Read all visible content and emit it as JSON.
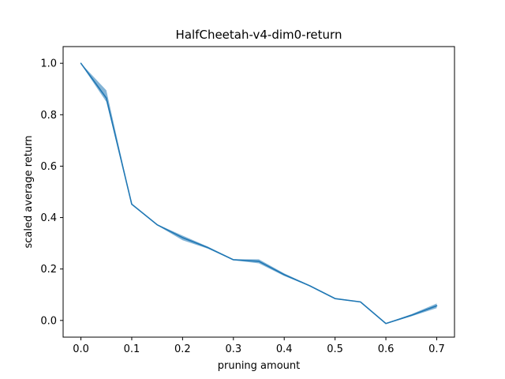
{
  "chart_data": {
    "type": "line",
    "title": "HalfCheetah-v4-dim0-return",
    "xlabel": "pruning amount",
    "ylabel": "scaled average return",
    "xlim": [
      -0.035,
      0.735
    ],
    "ylim": [
      -0.065,
      1.065
    ],
    "xticks": [
      0.0,
      0.1,
      0.2,
      0.3,
      0.4,
      0.5,
      0.6,
      0.7
    ],
    "xtick_labels": [
      "0.0",
      "0.1",
      "0.2",
      "0.3",
      "0.4",
      "0.5",
      "0.6",
      "0.7"
    ],
    "yticks": [
      0.0,
      0.2,
      0.4,
      0.6,
      0.8,
      1.0
    ],
    "ytick_labels": [
      "0.0",
      "0.2",
      "0.4",
      "0.6",
      "0.8",
      "1.0"
    ],
    "grid": false,
    "legend": "none",
    "line_color": "#1f77b4",
    "band_color": "#1f77b4",
    "series": [
      {
        "x": [
          0.0,
          0.05,
          0.1,
          0.15,
          0.2,
          0.25,
          0.3,
          0.35,
          0.4,
          0.45,
          0.5,
          0.55,
          0.6,
          0.65,
          0.7
        ],
        "y": [
          1.0,
          0.865,
          0.452,
          0.372,
          0.322,
          0.283,
          0.236,
          0.23,
          0.178,
          0.135,
          0.085,
          0.072,
          -0.012,
          0.02,
          0.057
        ],
        "lower": [
          0.997,
          0.85,
          0.45,
          0.37,
          0.312,
          0.279,
          0.234,
          0.222,
          0.173,
          0.133,
          0.083,
          0.07,
          -0.014,
          0.016,
          0.048
        ],
        "upper": [
          1.0,
          0.895,
          0.454,
          0.374,
          0.33,
          0.287,
          0.238,
          0.238,
          0.183,
          0.137,
          0.087,
          0.074,
          -0.01,
          0.024,
          0.066
        ]
      }
    ]
  }
}
